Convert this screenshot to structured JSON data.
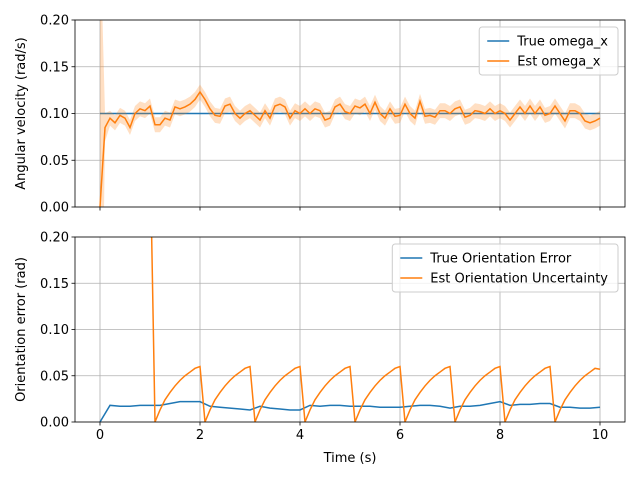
{
  "chart_data": [
    {
      "type": "line",
      "y_label": "Angular velocity (rad/s)",
      "xlim": [
        -0.5,
        10.5
      ],
      "xticks": [
        0,
        2,
        4,
        6,
        8,
        10
      ],
      "show_xtick_labels": false,
      "ylim": [
        0,
        0.2
      ],
      "yticks": [
        {
          "value": 0,
          "label": "0.00"
        },
        {
          "value": 0.05,
          "label": "0.05"
        },
        {
          "value": 0.1,
          "label": "0.10"
        },
        {
          "value": 0.15,
          "label": "0.15"
        },
        {
          "value": 0.2,
          "label": "0.20"
        }
      ],
      "grid": true,
      "legend": "upper right",
      "series": [
        {
          "name": "True omega_x",
          "color": "#1f77b4",
          "x": [
            0,
            10
          ],
          "values": [
            0.1,
            0.1
          ]
        },
        {
          "name": "Est omega_x",
          "color": "#ff7f0e",
          "x": [
            0,
            0.1,
            0.2,
            0.3,
            0.4,
            0.5,
            0.6,
            0.7,
            0.8,
            0.9,
            1.0,
            1.1,
            1.2,
            1.3,
            1.4,
            1.5,
            1.6,
            1.7,
            1.8,
            1.9,
            2.0,
            2.1,
            2.2,
            2.3,
            2.4,
            2.5,
            2.6,
            2.7,
            2.8,
            2.9,
            3.0,
            3.1,
            3.2,
            3.3,
            3.4,
            3.5,
            3.6,
            3.7,
            3.8,
            3.9,
            4.0,
            4.1,
            4.2,
            4.3,
            4.4,
            4.5,
            4.6,
            4.7,
            4.8,
            4.9,
            5.0,
            5.1,
            5.2,
            5.3,
            5.4,
            5.5,
            5.6,
            5.7,
            5.8,
            5.9,
            6.0,
            6.1,
            6.2,
            6.3,
            6.4,
            6.5,
            6.6,
            6.7,
            6.8,
            6.9,
            7.0,
            7.1,
            7.2,
            7.3,
            7.4,
            7.5,
            7.6,
            7.7,
            7.8,
            7.9,
            8.0,
            8.1,
            8.2,
            8.3,
            8.4,
            8.5,
            8.6,
            8.7,
            8.8,
            8.9,
            9.0,
            9.1,
            9.2,
            9.3,
            9.4,
            9.5,
            9.6,
            9.7,
            9.8,
            9.9,
            10.0
          ],
          "values": [
            0.0,
            0.085,
            0.095,
            0.09,
            0.098,
            0.095,
            0.085,
            0.1,
            0.105,
            0.103,
            0.108,
            0.088,
            0.088,
            0.095,
            0.093,
            0.107,
            0.105,
            0.107,
            0.11,
            0.115,
            0.123,
            0.115,
            0.105,
            0.098,
            0.097,
            0.108,
            0.11,
            0.1,
            0.095,
            0.1,
            0.103,
            0.098,
            0.093,
            0.103,
            0.095,
            0.108,
            0.11,
            0.107,
            0.095,
            0.103,
            0.1,
            0.105,
            0.1,
            0.105,
            0.103,
            0.093,
            0.095,
            0.107,
            0.11,
            0.102,
            0.1,
            0.108,
            0.106,
            0.11,
            0.1,
            0.112,
            0.1,
            0.095,
            0.105,
            0.097,
            0.098,
            0.11,
            0.1,
            0.095,
            0.113,
            0.097,
            0.098,
            0.096,
            0.103,
            0.103,
            0.1,
            0.105,
            0.107,
            0.096,
            0.098,
            0.103,
            0.102,
            0.1,
            0.105,
            0.1,
            0.103,
            0.1,
            0.093,
            0.1,
            0.107,
            0.1,
            0.108,
            0.1,
            0.107,
            0.098,
            0.1,
            0.108,
            0.1,
            0.092,
            0.103,
            0.103,
            0.1,
            0.092,
            0.09,
            0.092,
            0.095
          ],
          "errors": [
            0.3,
            0.015,
            0.008,
            0.008,
            0.008,
            0.008,
            0.008,
            0.008,
            0.008,
            0.008,
            0.008,
            0.008,
            0.008,
            0.008,
            0.008,
            0.008,
            0.008,
            0.008,
            0.008,
            0.008,
            0.008,
            0.008,
            0.008,
            0.008,
            0.008,
            0.008,
            0.008,
            0.008,
            0.008,
            0.008,
            0.008,
            0.008,
            0.008,
            0.008,
            0.008,
            0.008,
            0.008,
            0.008,
            0.008,
            0.008,
            0.008,
            0.008,
            0.008,
            0.008,
            0.008,
            0.008,
            0.008,
            0.008,
            0.008,
            0.008,
            0.008,
            0.008,
            0.008,
            0.008,
            0.008,
            0.008,
            0.008,
            0.008,
            0.008,
            0.008,
            0.008,
            0.008,
            0.008,
            0.008,
            0.008,
            0.008,
            0.008,
            0.008,
            0.008,
            0.008,
            0.008,
            0.008,
            0.008,
            0.008,
            0.008,
            0.008,
            0.008,
            0.008,
            0.008,
            0.008,
            0.008,
            0.008,
            0.008,
            0.008,
            0.008,
            0.008,
            0.008,
            0.008,
            0.008,
            0.008,
            0.008,
            0.008,
            0.008,
            0.008,
            0.008,
            0.008,
            0.008,
            0.008,
            0.008,
            0.008,
            0.008
          ]
        }
      ]
    },
    {
      "type": "line",
      "x_label": "Time (s)",
      "y_label": "Orientation error (rad)",
      "xlim": [
        -0.5,
        10.5
      ],
      "xticks": [
        0,
        2,
        4,
        6,
        8,
        10
      ],
      "show_xtick_labels": true,
      "ylim": [
        0,
        0.2
      ],
      "yticks": [
        {
          "value": 0,
          "label": "0.00"
        },
        {
          "value": 0.05,
          "label": "0.05"
        },
        {
          "value": 0.1,
          "label": "0.10"
        },
        {
          "value": 0.15,
          "label": "0.15"
        },
        {
          "value": 0.2,
          "label": "0.20"
        }
      ],
      "grid": true,
      "legend": "upper right",
      "series": [
        {
          "name": "True Orientation Error",
          "color": "#1f77b4",
          "x": [
            0,
            0.2,
            0.4,
            0.6,
            0.8,
            1.0,
            1.2,
            1.4,
            1.6,
            1.8,
            2.0,
            2.2,
            2.4,
            2.6,
            2.8,
            3.0,
            3.2,
            3.4,
            3.6,
            3.8,
            4.0,
            4.2,
            4.4,
            4.6,
            4.8,
            5.0,
            5.2,
            5.4,
            5.6,
            5.8,
            6.0,
            6.2,
            6.4,
            6.6,
            6.8,
            7.0,
            7.2,
            7.4,
            7.6,
            7.8,
            8.0,
            8.2,
            8.4,
            8.6,
            8.8,
            9.0,
            9.2,
            9.4,
            9.6,
            9.8,
            10.0
          ],
          "values": [
            0,
            0.018,
            0.017,
            0.017,
            0.018,
            0.018,
            0.018,
            0.02,
            0.022,
            0.022,
            0.022,
            0.017,
            0.016,
            0.015,
            0.014,
            0.013,
            0.017,
            0.015,
            0.014,
            0.013,
            0.013,
            0.018,
            0.017,
            0.018,
            0.018,
            0.017,
            0.017,
            0.017,
            0.016,
            0.016,
            0.016,
            0.017,
            0.018,
            0.018,
            0.017,
            0.015,
            0.017,
            0.017,
            0.018,
            0.02,
            0.022,
            0.018,
            0.019,
            0.019,
            0.02,
            0.02,
            0.016,
            0.016,
            0.015,
            0.015,
            0.016
          ]
        },
        {
          "name": "Est Orientation Uncertainty",
          "color": "#ff7f0e",
          "x": [
            1.0,
            1.1,
            1.2,
            1.3,
            1.4,
            1.5,
            1.6,
            1.7,
            1.8,
            1.9,
            2.0,
            2.1,
            2.2,
            2.3,
            2.4,
            2.5,
            2.6,
            2.7,
            2.8,
            2.9,
            3.0,
            3.1,
            3.2,
            3.3,
            3.4,
            3.5,
            3.6,
            3.7,
            3.8,
            3.9,
            4.0,
            4.1,
            4.2,
            4.3,
            4.4,
            4.5,
            4.6,
            4.7,
            4.8,
            4.9,
            5.0,
            5.1,
            5.2,
            5.3,
            5.4,
            5.5,
            5.6,
            5.7,
            5.8,
            5.9,
            6.0,
            6.1,
            6.2,
            6.3,
            6.4,
            6.5,
            6.6,
            6.7,
            6.8,
            6.9,
            7.0,
            7.1,
            7.2,
            7.3,
            7.4,
            7.5,
            7.6,
            7.7,
            7.8,
            7.9,
            8.0,
            8.1,
            8.2,
            8.3,
            8.4,
            8.5,
            8.6,
            8.7,
            8.8,
            8.9,
            9.0,
            9.1,
            9.2,
            9.3,
            9.4,
            9.5,
            9.6,
            9.7,
            9.8,
            9.9,
            10.0
          ],
          "values": [
            0.3,
            0,
            0.013,
            0.024,
            0.032,
            0.039,
            0.045,
            0.05,
            0.054,
            0.058,
            0.06,
            0,
            0.013,
            0.024,
            0.032,
            0.039,
            0.045,
            0.05,
            0.054,
            0.058,
            0.06,
            0,
            0.013,
            0.024,
            0.032,
            0.039,
            0.045,
            0.05,
            0.054,
            0.058,
            0.06,
            0,
            0.013,
            0.024,
            0.032,
            0.039,
            0.045,
            0.05,
            0.054,
            0.058,
            0.06,
            0,
            0.013,
            0.024,
            0.032,
            0.039,
            0.045,
            0.05,
            0.054,
            0.058,
            0.06,
            0,
            0.013,
            0.024,
            0.032,
            0.039,
            0.045,
            0.05,
            0.054,
            0.058,
            0.06,
            0,
            0.013,
            0.024,
            0.032,
            0.039,
            0.045,
            0.05,
            0.054,
            0.058,
            0.06,
            0,
            0.013,
            0.024,
            0.032,
            0.039,
            0.045,
            0.05,
            0.054,
            0.058,
            0.06,
            0,
            0.013,
            0.024,
            0.032,
            0.039,
            0.045,
            0.05,
            0.054,
            0.058,
            0.057
          ]
        }
      ]
    }
  ]
}
